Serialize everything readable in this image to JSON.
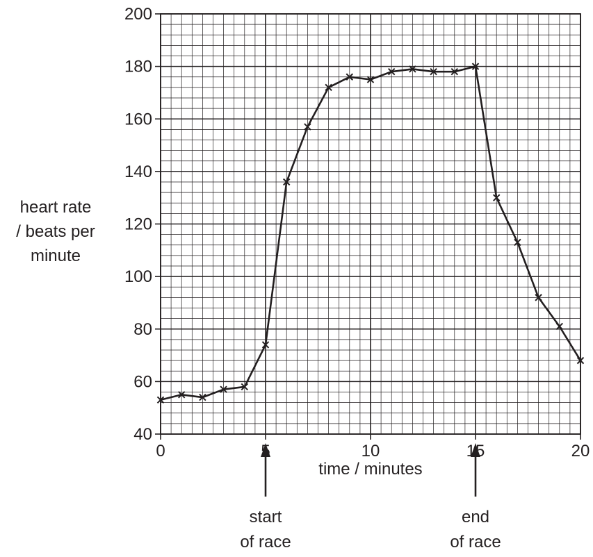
{
  "chart_data": {
    "type": "line",
    "xlabel": "time / minutes",
    "ylabel": [
      "heart rate",
      "/ beats per",
      "minute"
    ],
    "xlim": [
      0,
      20
    ],
    "ylim": [
      40,
      200
    ],
    "x_ticks": [
      0,
      5,
      10,
      15,
      20
    ],
    "y_ticks": [
      40,
      60,
      80,
      100,
      120,
      140,
      160,
      180,
      200
    ],
    "x_minor_step": 0.5,
    "y_minor_step": 4,
    "grid": true,
    "series": [
      {
        "x": [
          0,
          1,
          2,
          3,
          4,
          5,
          6,
          7,
          8,
          9,
          10,
          11,
          12,
          13,
          14,
          15,
          16,
          17,
          18,
          19,
          20
        ],
        "y": [
          53,
          55,
          54,
          57,
          58,
          74,
          136,
          157,
          172,
          176,
          175,
          178,
          179,
          178,
          178,
          180,
          130,
          113,
          92,
          81,
          68
        ],
        "marker": "x"
      }
    ],
    "annotations": [
      {
        "x": 5,
        "lines": [
          "start",
          "of race"
        ]
      },
      {
        "x": 15,
        "lines": [
          "end",
          "of race"
        ]
      }
    ],
    "colors": {
      "ink": "#231f20",
      "background": "#ffffff"
    }
  }
}
